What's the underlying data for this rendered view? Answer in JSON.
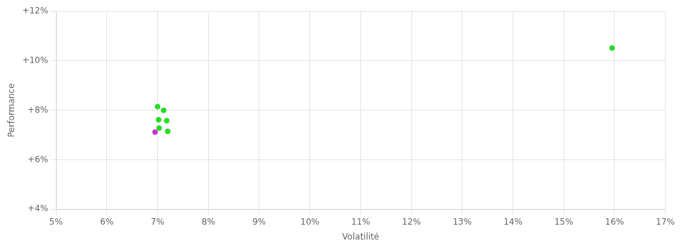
{
  "chart_data": {
    "type": "scatter",
    "xlabel": "Volatilité",
    "ylabel": "Performance",
    "xlim": [
      0.05,
      0.17
    ],
    "ylim": [
      0.04,
      0.12
    ],
    "xticks": [
      {
        "value": 0.05,
        "label": "5%"
      },
      {
        "value": 0.06,
        "label": "6%"
      },
      {
        "value": 0.07,
        "label": "7%"
      },
      {
        "value": 0.08,
        "label": "8%"
      },
      {
        "value": 0.09,
        "label": "9%"
      },
      {
        "value": 0.1,
        "label": "10%"
      },
      {
        "value": 0.11,
        "label": "11%"
      },
      {
        "value": 0.12,
        "label": "12%"
      },
      {
        "value": 0.13,
        "label": "13%"
      },
      {
        "value": 0.14,
        "label": "14%"
      },
      {
        "value": 0.15,
        "label": "15%"
      },
      {
        "value": 0.16,
        "label": "16%"
      },
      {
        "value": 0.17,
        "label": "17%"
      }
    ],
    "yticks": [
      {
        "value": 0.04,
        "label": "+4%"
      },
      {
        "value": 0.06,
        "label": "+6%"
      },
      {
        "value": 0.08,
        "label": "+8%"
      },
      {
        "value": 0.1,
        "label": "+10%"
      },
      {
        "value": 0.12,
        "label": "+12%"
      }
    ],
    "grid": true,
    "series": [
      {
        "color": "#22dd22",
        "x": [
          0.07,
          0.0712,
          0.0702,
          0.0718,
          0.0703,
          0.072,
          0.1595
        ],
        "values": [
          0.0815,
          0.08,
          0.0762,
          0.0758,
          0.0728,
          0.0715,
          0.1052
        ]
      },
      {
        "color": "#cc33cc",
        "x": [
          0.0695
        ],
        "values": [
          0.0712
        ]
      }
    ]
  }
}
